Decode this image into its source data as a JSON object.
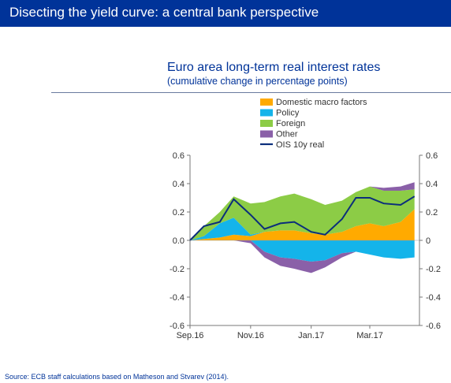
{
  "header": {
    "title": "Disecting the yield curve: a central bank perspective"
  },
  "footer": {
    "source": "Source: ECB staff calculations based on Matheson and Stvarev (2014)."
  },
  "colors": {
    "header_bg": "#003399",
    "domestic": "#FFAA00",
    "policy": "#14B4EA",
    "foreign": "#8CCC46",
    "other": "#8A60A8",
    "ois": "#0B2E7B"
  },
  "chart_data": {
    "type": "area",
    "title": "Euro area long-term real interest rates",
    "subtitle": "(cumulative change in percentage points)",
    "x_ticks": [
      "Sep.16",
      "Nov.16",
      "Jan.17",
      "Mar.17"
    ],
    "y_ticks": [
      "0.6",
      "0.4",
      "0.2",
      "0",
      "-0.2",
      "-0.4",
      "-0.6"
    ],
    "y_ticks_left": [
      "0.6",
      "0.4",
      "0.2",
      "0.0",
      "-0.2",
      "-0.4",
      "-0.6"
    ],
    "ylim": [
      -0.6,
      0.6
    ],
    "legend": [
      "Domestic macro factors",
      "Policy",
      "Foreign",
      "Other",
      "OIS 10y real"
    ],
    "legend_position": "top",
    "x": [
      "2016-09-01",
      "2016-09-15",
      "2016-10-01",
      "2016-10-15",
      "2016-11-01",
      "2016-11-15",
      "2016-12-01",
      "2016-12-15",
      "2017-01-01",
      "2017-01-15",
      "2017-02-01",
      "2017-02-15",
      "2017-03-01",
      "2017-03-15",
      "2017-04-01",
      "2017-04-15"
    ],
    "series": [
      {
        "name": "Domestic macro factors",
        "values": [
          0.0,
          0.01,
          0.02,
          0.04,
          0.03,
          0.06,
          0.07,
          0.07,
          0.05,
          0.04,
          0.06,
          0.1,
          0.12,
          0.1,
          0.13,
          0.22
        ]
      },
      {
        "name": "Policy",
        "values": [
          0.0,
          0.02,
          0.1,
          0.12,
          0.01,
          -0.08,
          -0.12,
          -0.13,
          -0.15,
          -0.14,
          -0.09,
          -0.08,
          -0.1,
          -0.12,
          -0.13,
          -0.12
        ]
      },
      {
        "name": "Foreign",
        "values": [
          0.0,
          0.07,
          0.08,
          0.15,
          0.22,
          0.21,
          0.24,
          0.26,
          0.24,
          0.21,
          0.22,
          0.24,
          0.26,
          0.25,
          0.22,
          0.14
        ]
      },
      {
        "name": "Other",
        "values": [
          0.0,
          0.0,
          0.0,
          0.0,
          -0.02,
          -0.04,
          -0.06,
          -0.07,
          -0.08,
          -0.05,
          -0.03,
          0.0,
          0.0,
          0.02,
          0.03,
          0.05
        ]
      },
      {
        "name": "OIS 10y real",
        "values": [
          0.0,
          0.1,
          0.13,
          0.29,
          0.18,
          0.08,
          0.12,
          0.13,
          0.06,
          0.04,
          0.15,
          0.3,
          0.3,
          0.26,
          0.25,
          0.31
        ]
      }
    ],
    "grid": false
  }
}
